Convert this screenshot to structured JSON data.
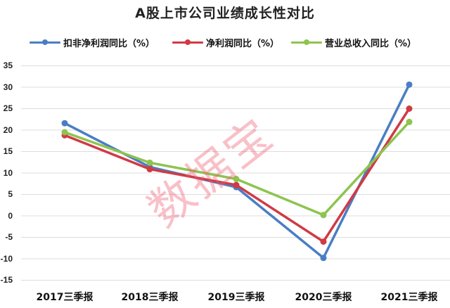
{
  "chart_data": {
    "type": "line",
    "title": "A股上市公司业绩成长性对比",
    "xlabel": "",
    "ylabel": "",
    "categories": [
      "2017三季报",
      "2018三季报",
      "2019三季报",
      "2020三季报",
      "2021三季报"
    ],
    "series": [
      {
        "name": "扣非净利润同比（%）",
        "color": "#4A7EC4",
        "values": [
          21.6,
          11.4,
          6.7,
          -9.8,
          30.6
        ]
      },
      {
        "name": "净利润同比（%）",
        "color": "#D03A44",
        "values": [
          18.8,
          10.9,
          7.2,
          -6.0,
          25.0
        ]
      },
      {
        "name": "营业总收入同比（%）",
        "color": "#8DC44F",
        "values": [
          19.5,
          12.4,
          8.6,
          0.2,
          21.9
        ]
      }
    ],
    "ylim": [
      -15,
      35
    ],
    "yticks": [
      35,
      30,
      25,
      20,
      15,
      10,
      5,
      0,
      -5,
      -10,
      -15
    ],
    "grid": true,
    "legend_position": "top"
  },
  "watermark": "数据宝"
}
